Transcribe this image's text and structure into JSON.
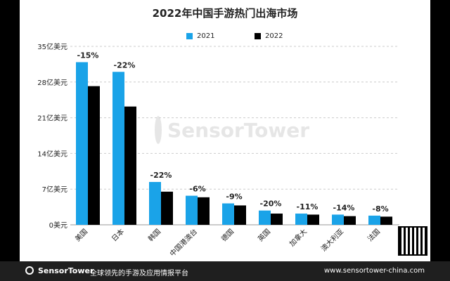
{
  "title": "2022年中国手游热门出海市场",
  "legend": {
    "series_2021": "2021",
    "series_2022": "2022"
  },
  "colors": {
    "series_2021": "#1aa3e8",
    "series_2022": "#000000"
  },
  "chart_data": {
    "type": "bar",
    "title": "2022年中国手游热门出海市场",
    "categories": [
      "美国",
      "日本",
      "韩国",
      "中国港澳台",
      "德国",
      "英国",
      "加拿大",
      "澳大利亚",
      "法国"
    ],
    "series": [
      {
        "name": "2021",
        "values": [
          31.9,
          30.0,
          8.4,
          5.7,
          4.2,
          2.8,
          2.2,
          2.0,
          1.8
        ]
      },
      {
        "name": "2022",
        "values": [
          27.2,
          23.2,
          6.5,
          5.4,
          3.8,
          2.2,
          2.0,
          1.7,
          1.6
        ]
      }
    ],
    "change_labels": [
      "-15%",
      "-22%",
      "-22%",
      "-6%",
      "-9%",
      "-20%",
      "-11%",
      "-14%",
      "-8%"
    ],
    "yticks": [
      "0美元",
      "7亿美元",
      "14亿美元",
      "21亿美元",
      "28亿美元",
      "35亿美元"
    ],
    "ytick_values": [
      0,
      7,
      14,
      21,
      28,
      35
    ],
    "ylim": [
      0,
      35
    ],
    "legend_position": "top-center",
    "grid": true
  },
  "watermark": "SensorTower",
  "footer": {
    "brand": "SensorTower",
    "tagline": "全球领先的手游及应用情报平台",
    "url": "www.sensortower-china.com"
  }
}
